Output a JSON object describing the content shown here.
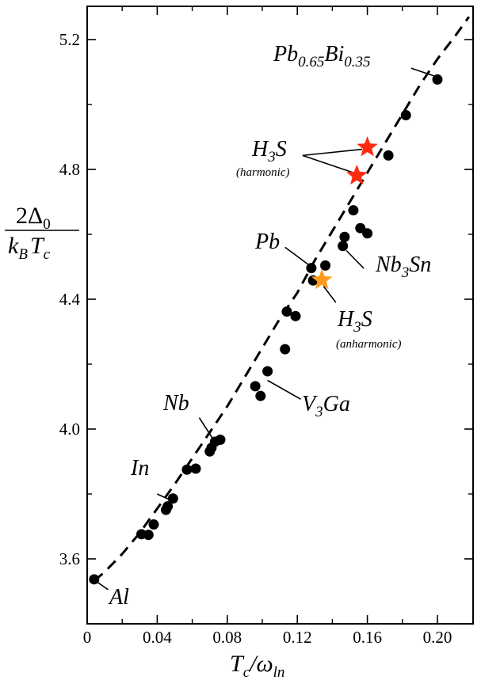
{
  "chart_data": {
    "type": "scatter",
    "title": "",
    "xlabel": "T_c/ω_ln",
    "ylabel": "2Δ_0 / k_B T_c",
    "xlim": [
      0,
      0.22
    ],
    "ylim": [
      3.4,
      5.32
    ],
    "x_ticks": [
      0,
      0.04,
      0.08,
      0.12,
      0.16,
      0.2
    ],
    "x_tick_labels": [
      "0",
      "0.04",
      "0.08",
      "0.12",
      "0.16",
      "0.20"
    ],
    "y_ticks": [
      3.6,
      4.0,
      4.4,
      4.8,
      5.2
    ],
    "y_tick_labels": [
      "3.6",
      "4.0",
      "4.4",
      "4.8",
      "5.2"
    ],
    "grid": false,
    "series": [
      {
        "marker": "circle",
        "color": "#000000",
        "points": [
          {
            "x": 0.004,
            "y": 3.537
          },
          {
            "x": 0.031,
            "y": 3.676
          },
          {
            "x": 0.035,
            "y": 3.674
          },
          {
            "x": 0.038,
            "y": 3.706
          },
          {
            "x": 0.045,
            "y": 3.751
          },
          {
            "x": 0.046,
            "y": 3.762
          },
          {
            "x": 0.049,
            "y": 3.786
          },
          {
            "x": 0.057,
            "y": 3.875
          },
          {
            "x": 0.062,
            "y": 3.878
          },
          {
            "x": 0.07,
            "y": 3.931
          },
          {
            "x": 0.071,
            "y": 3.942
          },
          {
            "x": 0.073,
            "y": 3.961
          },
          {
            "x": 0.076,
            "y": 3.967
          },
          {
            "x": 0.096,
            "y": 4.132
          },
          {
            "x": 0.099,
            "y": 4.102
          },
          {
            "x": 0.103,
            "y": 4.178
          },
          {
            "x": 0.113,
            "y": 4.246
          },
          {
            "x": 0.114,
            "y": 4.362
          },
          {
            "x": 0.119,
            "y": 4.348
          },
          {
            "x": 0.128,
            "y": 4.496
          },
          {
            "x": 0.129,
            "y": 4.458
          },
          {
            "x": 0.136,
            "y": 4.504
          },
          {
            "x": 0.146,
            "y": 4.564
          },
          {
            "x": 0.147,
            "y": 4.592
          },
          {
            "x": 0.152,
            "y": 4.674
          },
          {
            "x": 0.156,
            "y": 4.619
          },
          {
            "x": 0.16,
            "y": 4.603
          },
          {
            "x": 0.172,
            "y": 4.843
          },
          {
            "x": 0.182,
            "y": 4.967
          },
          {
            "x": 0.2,
            "y": 5.077
          }
        ]
      },
      {
        "name": "H3S harmonic",
        "marker": "star",
        "color": "#ff2a10",
        "points": [
          {
            "x": 0.16,
            "y": 4.868
          },
          {
            "x": 0.154,
            "y": 4.781
          }
        ]
      },
      {
        "name": "H3S anharmonic",
        "marker": "star",
        "color": "#ff9a1f",
        "points": [
          {
            "x": 0.134,
            "y": 4.459
          }
        ]
      }
    ],
    "fit_curve": {
      "style": "dashed",
      "color": "#000000",
      "points": [
        {
          "x": 0.004,
          "y": 3.532
        },
        {
          "x": 0.01,
          "y": 3.56
        },
        {
          "x": 0.02,
          "y": 3.615
        },
        {
          "x": 0.03,
          "y": 3.68
        },
        {
          "x": 0.04,
          "y": 3.755
        },
        {
          "x": 0.05,
          "y": 3.83
        },
        {
          "x": 0.06,
          "y": 3.91
        },
        {
          "x": 0.07,
          "y": 3.99
        },
        {
          "x": 0.08,
          "y": 4.07
        },
        {
          "x": 0.09,
          "y": 4.16
        },
        {
          "x": 0.1,
          "y": 4.25
        },
        {
          "x": 0.11,
          "y": 4.34
        },
        {
          "x": 0.12,
          "y": 4.42
        },
        {
          "x": 0.13,
          "y": 4.52
        },
        {
          "x": 0.14,
          "y": 4.61
        },
        {
          "x": 0.15,
          "y": 4.7
        },
        {
          "x": 0.16,
          "y": 4.79
        },
        {
          "x": 0.17,
          "y": 4.88
        },
        {
          "x": 0.18,
          "y": 4.97
        },
        {
          "x": 0.19,
          "y": 5.06
        },
        {
          "x": 0.2,
          "y": 5.14
        },
        {
          "x": 0.21,
          "y": 5.21
        },
        {
          "x": 0.218,
          "y": 5.27
        }
      ]
    },
    "annotations": [
      {
        "id": "al",
        "label": "Al",
        "text_x": 0.01,
        "text_y": 3.48,
        "line_from": [
          0.004,
          3.535
        ],
        "line_to": [
          0.012,
          3.505
        ]
      },
      {
        "id": "in",
        "label": "In",
        "text_x": 0.022,
        "text_y": 3.815,
        "line_from": [
          0.04,
          3.8
        ],
        "line_to": [
          0.048,
          3.78
        ]
      },
      {
        "id": "nb",
        "label": "Nb",
        "text_x": 0.036,
        "text_y": 4.065,
        "line_from": [
          0.064,
          4.035
        ],
        "line_to": [
          0.073,
          3.96
        ]
      },
      {
        "id": "v3ga",
        "label": "V3Ga",
        "text_x": 0.123,
        "text_y": 4.06,
        "line_from": [
          0.103,
          4.15
        ],
        "line_to": [
          0.122,
          4.092
        ]
      },
      {
        "id": "pb",
        "label": "Pb",
        "text_x": 0.092,
        "text_y": 4.56,
        "line_from": [
          0.113,
          4.56
        ],
        "line_to": [
          0.128,
          4.5
        ]
      },
      {
        "id": "nb3sn",
        "label": "Nb3Sn",
        "text_x": 0.16,
        "text_y": 4.485,
        "line_from": [
          0.148,
          4.55
        ],
        "line_to": [
          0.158,
          4.495
        ]
      },
      {
        "id": "h3s-anharmonic",
        "label": "H3S",
        "sublabel": "(anharmonic)",
        "text_x": 0.14,
        "text_y": 4.31,
        "line_from": [
          0.135,
          4.44
        ],
        "line_to": [
          0.142,
          4.39
        ]
      },
      {
        "id": "h3s-harmonic",
        "label": "H3S",
        "sublabel": "(harmonic)",
        "text_x": 0.093,
        "text_y": 4.826,
        "line_from": [
          0.123,
          4.843
        ],
        "line_to": [
          0.157,
          4.862
        ]
      },
      {
        "id": "pbbi",
        "label": "Pb0.65Bi0.35",
        "text_x": 0.115,
        "text_y": 5.128,
        "line_from": [
          0.185,
          5.112
        ],
        "line_to": [
          0.198,
          5.088
        ]
      }
    ]
  },
  "texts": {
    "xlabel_main": "T",
    "xlabel_sub1": "c",
    "xlabel_slash": "/ω",
    "xlabel_sub2": "ln",
    "ylabel_num": "2Δ",
    "ylabel_num_sub": "0",
    "ylabel_den": "k",
    "ylabel_den_sub1": "B",
    "ylabel_den_T": "T",
    "ylabel_den_sub2": "c",
    "ann_al": "Al",
    "ann_in": "In",
    "ann_nb": "Nb",
    "ann_v3ga_v": "V",
    "ann_v3ga_sub": "3",
    "ann_v3ga_ga": "Ga",
    "ann_pb": "Pb",
    "ann_nb3sn_nb": "Nb",
    "ann_nb3sn_sub": "3",
    "ann_nb3sn_sn": "Sn",
    "ann_h3s_h": "H",
    "ann_h3s_sub": "3",
    "ann_h3s_s": "S",
    "ann_harmonic": "(harmonic)",
    "ann_anharmonic": "(anharmonic)",
    "ann_pbbi_pb": "Pb",
    "ann_pbbi_sub1": "0.65",
    "ann_pbbi_bi": "Bi",
    "ann_pbbi_sub2": "0.35"
  }
}
